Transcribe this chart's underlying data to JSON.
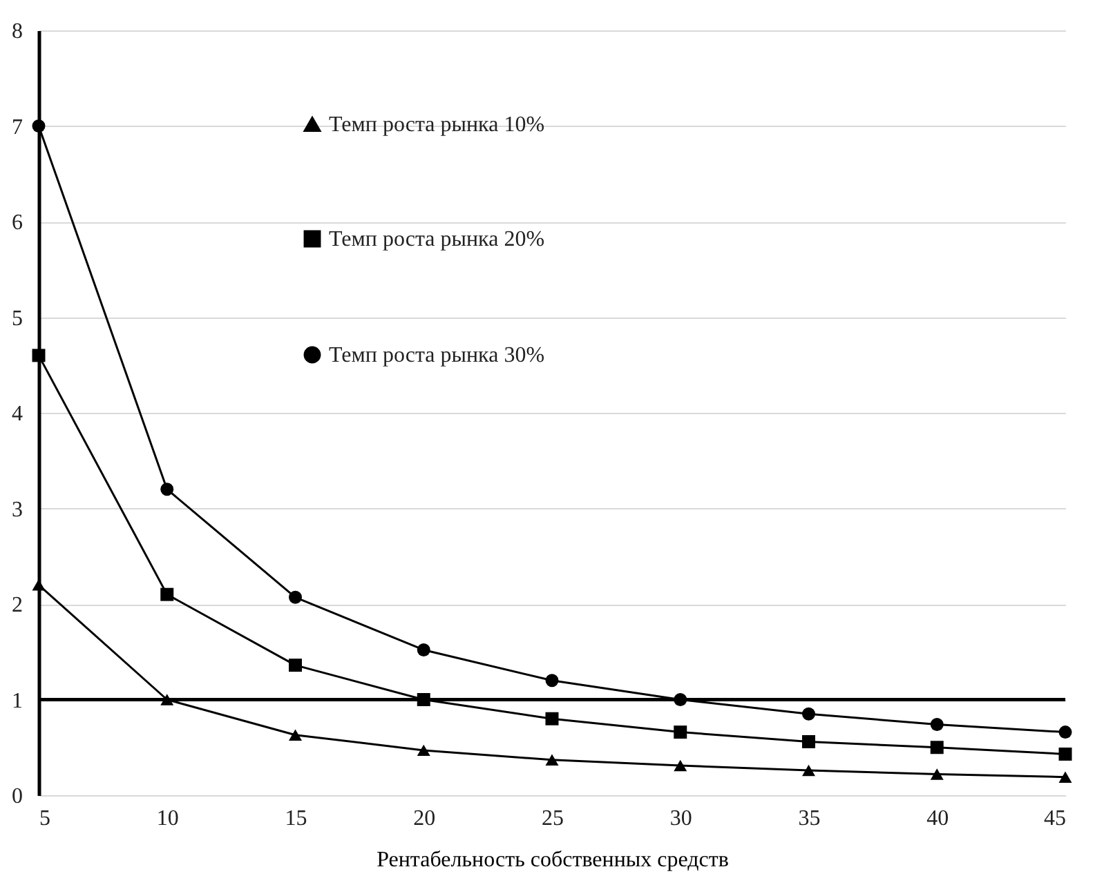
{
  "chart_data": {
    "type": "line",
    "xlabel": "Рентабельность собственных средств",
    "x": [
      5,
      10,
      15,
      20,
      25,
      30,
      35,
      40,
      45
    ],
    "xlim": [
      5,
      45
    ],
    "xticks": [
      5,
      10,
      15,
      20,
      25,
      30,
      35,
      40,
      45
    ],
    "ylim": [
      0,
      8
    ],
    "yticks": [
      0,
      1,
      2,
      3,
      4,
      5,
      6,
      7,
      8
    ],
    "grid": "y",
    "legend": "top",
    "ref_lines": [
      {
        "axis": "y",
        "value": 1,
        "color": "#000000"
      }
    ],
    "series": [
      {
        "name": "Темп роста рынка 10%",
        "color": "#000000",
        "marker": "triangle",
        "values": [
          2.2,
          1.0,
          0.63,
          0.47,
          0.37,
          0.31,
          0.26,
          0.22,
          0.19
        ]
      },
      {
        "name": "Темп роста рынка 20%",
        "color": "#000000",
        "marker": "square",
        "values": [
          4.6,
          2.1,
          1.36,
          1.0,
          0.8,
          0.66,
          0.56,
          0.5,
          0.43
        ]
      },
      {
        "name": "Темп роста рынка 30%",
        "color": "#000000",
        "marker": "circle",
        "values": [
          7.0,
          3.2,
          2.07,
          1.52,
          1.2,
          1.0,
          0.85,
          0.74,
          0.66
        ]
      }
    ]
  }
}
